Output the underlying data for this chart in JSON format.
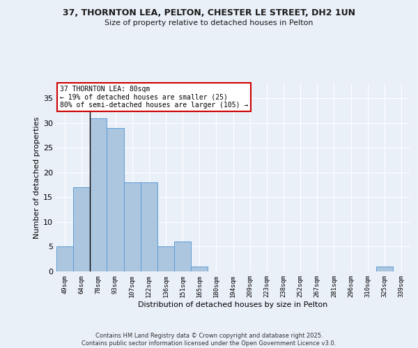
{
  "title1": "37, THORNTON LEA, PELTON, CHESTER LE STREET, DH2 1UN",
  "title2": "Size of property relative to detached houses in Pelton",
  "xlabel": "Distribution of detached houses by size in Pelton",
  "ylabel": "Number of detached properties",
  "categories": [
    "49sqm",
    "64sqm",
    "78sqm",
    "93sqm",
    "107sqm",
    "122sqm",
    "136sqm",
    "151sqm",
    "165sqm",
    "180sqm",
    "194sqm",
    "209sqm",
    "223sqm",
    "238sqm",
    "252sqm",
    "267sqm",
    "281sqm",
    "296sqm",
    "310sqm",
    "325sqm",
    "339sqm"
  ],
  "values": [
    5,
    17,
    31,
    29,
    18,
    18,
    5,
    6,
    1,
    0,
    0,
    0,
    0,
    0,
    0,
    0,
    0,
    0,
    0,
    1,
    0
  ],
  "bar_color": "#adc6e0",
  "bar_edge_color": "#5b9bd5",
  "vline_x": 2.0,
  "vline_color": "#000000",
  "annotation_text": "37 THORNTON LEA: 80sqm\n← 19% of detached houses are smaller (25)\n80% of semi-detached houses are larger (105) →",
  "annotation_box_color": "#ffffff",
  "annotation_box_edge": "#cc0000",
  "ylim": [
    0,
    38
  ],
  "yticks": [
    0,
    5,
    10,
    15,
    20,
    25,
    30,
    35,
    40
  ],
  "footer": "Contains HM Land Registry data © Crown copyright and database right 2025.\nContains public sector information licensed under the Open Government Licence v3.0.",
  "bg_color": "#eaf0f8",
  "plot_bg_color": "#eaf0f8",
  "grid_color": "#ffffff"
}
